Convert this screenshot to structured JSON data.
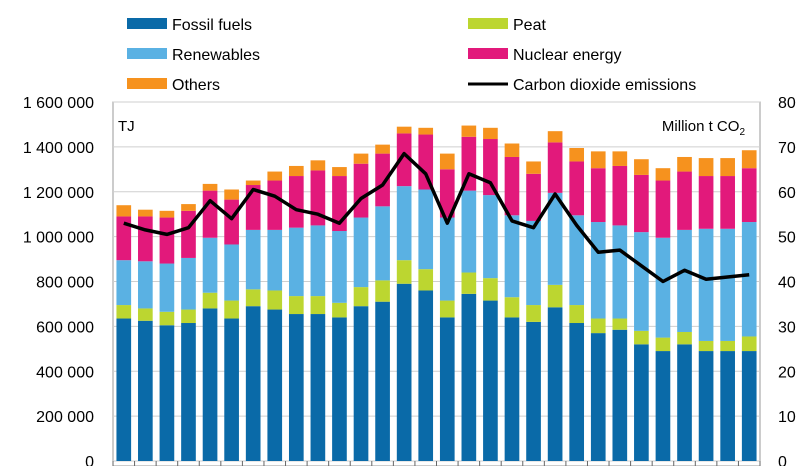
{
  "colors": {
    "fossil": "#0a6aa8",
    "peat": "#bcd630",
    "renewables": "#5ab1e3",
    "nuclear": "#e2197b",
    "others": "#f6921e",
    "co2": "#000000"
  },
  "chart_data": {
    "type": "bar",
    "stacked": true,
    "title": "",
    "left_unit": "TJ",
    "right_unit_text": "Million t CO",
    "right_unit_subscript": "2",
    "legend": [
      {
        "key": "fossil",
        "label": "Fossil fuels",
        "kind": "bar"
      },
      {
        "key": "peat",
        "label": "Peat",
        "kind": "bar"
      },
      {
        "key": "renewables",
        "label": "Renewables",
        "kind": "bar"
      },
      {
        "key": "nuclear",
        "label": "Nuclear energy",
        "kind": "bar"
      },
      {
        "key": "others",
        "label": "Others",
        "kind": "bar"
      },
      {
        "key": "co2",
        "label": "Carbon dioxide emissions",
        "kind": "line"
      }
    ],
    "y_left": {
      "min": 0,
      "max": 1600000,
      "ticks": [
        "0",
        "200 000",
        "400 000",
        "600 000",
        "800 000",
        "1 000 000",
        "1 200 000",
        "1 400 000",
        "1 600 000"
      ]
    },
    "y_right": {
      "min": 0,
      "max": 80,
      "ticks": [
        "0",
        "10",
        "20",
        "30",
        "40",
        "50",
        "60",
        "70",
        "80"
      ]
    },
    "grid": true,
    "bar_count": 30,
    "series": [
      {
        "key": "fossil",
        "values": [
          635000,
          625000,
          605000,
          615000,
          680000,
          635000,
          690000,
          675000,
          655000,
          655000,
          640000,
          690000,
          710000,
          790000,
          760000,
          640000,
          745000,
          715000,
          640000,
          620000,
          685000,
          615000,
          570000,
          585000,
          520000,
          490000,
          520000,
          490000,
          490000,
          490000
        ]
      },
      {
        "key": "peat",
        "values": [
          60000,
          55000,
          60000,
          60000,
          70000,
          80000,
          75000,
          85000,
          80000,
          80000,
          65000,
          85000,
          95000,
          105000,
          95000,
          75000,
          95000,
          100000,
          90000,
          75000,
          100000,
          80000,
          65000,
          50000,
          60000,
          60000,
          55000,
          45000,
          45000,
          65000
        ]
      },
      {
        "key": "renewables",
        "values": [
          200000,
          210000,
          215000,
          230000,
          245000,
          250000,
          265000,
          270000,
          305000,
          315000,
          320000,
          310000,
          330000,
          330000,
          355000,
          370000,
          365000,
          370000,
          365000,
          375000,
          410000,
          400000,
          430000,
          415000,
          440000,
          445000,
          455000,
          500000,
          500000,
          510000
        ]
      },
      {
        "key": "nuclear",
        "values": [
          195000,
          200000,
          205000,
          210000,
          210000,
          200000,
          200000,
          220000,
          230000,
          245000,
          245000,
          240000,
          235000,
          235000,
          245000,
          215000,
          240000,
          250000,
          260000,
          210000,
          225000,
          240000,
          240000,
          265000,
          255000,
          255000,
          260000,
          235000,
          235000,
          240000
        ]
      },
      {
        "key": "others",
        "values": [
          50000,
          30000,
          30000,
          30000,
          30000,
          45000,
          20000,
          40000,
          45000,
          45000,
          40000,
          45000,
          40000,
          30000,
          30000,
          70000,
          50000,
          50000,
          60000,
          55000,
          50000,
          60000,
          75000,
          65000,
          70000,
          55000,
          65000,
          80000,
          80000,
          80000
        ]
      }
    ],
    "line_series": {
      "key": "co2",
      "axis": "right",
      "values": [
        53,
        51.5,
        50.5,
        52,
        58,
        54,
        60.5,
        59,
        56,
        55,
        53,
        58.5,
        61.5,
        68.5,
        64,
        53,
        64,
        62,
        53.5,
        52,
        59.5,
        52.5,
        46.5,
        47,
        43.5,
        40,
        42.5,
        40.5,
        41,
        41.5
      ]
    }
  }
}
